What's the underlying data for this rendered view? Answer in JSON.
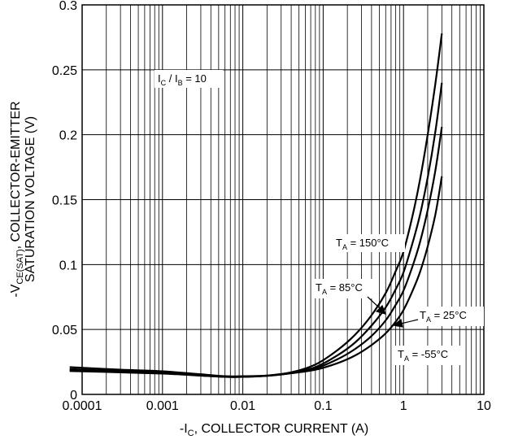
{
  "chart_data": {
    "type": "line",
    "xscale": "log",
    "xlim": [
      0.0001,
      10
    ],
    "ylim": [
      0,
      0.3
    ],
    "grid": true,
    "xlabel": {
      "prefix": "-I",
      "sub": "C",
      "rest": ", COLLECTOR CURRENT (A)"
    },
    "ylabel": {
      "line1_prefix": "-V",
      "line1_sub": "CE(SAT)",
      "line1_rest": ", COLLECTOR-EMITTER",
      "line2": "SATURATION VOLTAGE (V)"
    },
    "x_tick_labels": [
      "0.0001",
      "0.001",
      "0.01",
      "0.1",
      "1",
      "10"
    ],
    "x_tick_values": [
      0.0001,
      0.001,
      0.01,
      0.1,
      1,
      10
    ],
    "y_tick_labels": [
      "0",
      "0.05",
      "0.1",
      "0.15",
      "0.2",
      "0.25",
      "0.3"
    ],
    "y_tick_values": [
      0,
      0.05,
      0.1,
      0.15,
      0.2,
      0.25,
      0.3
    ],
    "condition": {
      "i1": "I",
      "s1": "C",
      "mid": " / I",
      "s2": "B",
      "rest": " = 10"
    },
    "series": [
      {
        "name": "T_A = 150°C",
        "label": {
          "pre": "T",
          "sub": "A",
          "post": " = 150°C"
        },
        "x": [
          7e-05,
          0.0003,
          0.001,
          0.003,
          0.006,
          0.01,
          0.02,
          0.04,
          0.08,
          0.15,
          0.25,
          0.4,
          0.6,
          0.8,
          1.0,
          1.3,
          1.6,
          2.0,
          2.5,
          3.0
        ],
        "y": [
          0.018,
          0.017,
          0.016,
          0.0145,
          0.0135,
          0.0135,
          0.0145,
          0.017,
          0.023,
          0.034,
          0.046,
          0.061,
          0.078,
          0.095,
          0.11,
          0.138,
          0.165,
          0.2,
          0.24,
          0.278
        ]
      },
      {
        "name": "T_A = 85°C",
        "label": {
          "pre": "T",
          "sub": "A",
          "post": " = 85°C"
        },
        "x": [
          7e-05,
          0.0003,
          0.001,
          0.003,
          0.006,
          0.01,
          0.02,
          0.04,
          0.08,
          0.15,
          0.25,
          0.4,
          0.6,
          0.8,
          1.0,
          1.3,
          1.6,
          2.0,
          2.5,
          3.0
        ],
        "y": [
          0.0185,
          0.0175,
          0.0165,
          0.0145,
          0.0135,
          0.0135,
          0.0143,
          0.0165,
          0.021,
          0.03,
          0.04,
          0.053,
          0.067,
          0.081,
          0.094,
          0.117,
          0.138,
          0.167,
          0.203,
          0.24
        ]
      },
      {
        "name": "T_A = 25°C",
        "label": {
          "pre": "T",
          "sub": "A",
          "post": " = 25°C"
        },
        "x": [
          7e-05,
          0.0003,
          0.001,
          0.003,
          0.006,
          0.01,
          0.02,
          0.04,
          0.08,
          0.15,
          0.25,
          0.4,
          0.6,
          0.8,
          1.0,
          1.3,
          1.6,
          2.0,
          2.5,
          3.0
        ],
        "y": [
          0.0195,
          0.018,
          0.017,
          0.015,
          0.0138,
          0.0138,
          0.0143,
          0.0163,
          0.02,
          0.027,
          0.035,
          0.045,
          0.057,
          0.069,
          0.08,
          0.099,
          0.117,
          0.142,
          0.173,
          0.206
        ]
      },
      {
        "name": "T_A = -55°C",
        "label": {
          "pre": "T",
          "sub": "A",
          "post": " = -55°C"
        },
        "x": [
          7e-05,
          0.0003,
          0.001,
          0.003,
          0.006,
          0.01,
          0.02,
          0.04,
          0.08,
          0.15,
          0.25,
          0.4,
          0.6,
          0.8,
          1.0,
          1.3,
          1.6,
          2.0,
          2.5,
          3.0
        ],
        "y": [
          0.021,
          0.019,
          0.0178,
          0.0155,
          0.014,
          0.014,
          0.0145,
          0.0163,
          0.019,
          0.024,
          0.03,
          0.038,
          0.047,
          0.056,
          0.065,
          0.08,
          0.094,
          0.114,
          0.139,
          0.168
        ]
      }
    ]
  }
}
